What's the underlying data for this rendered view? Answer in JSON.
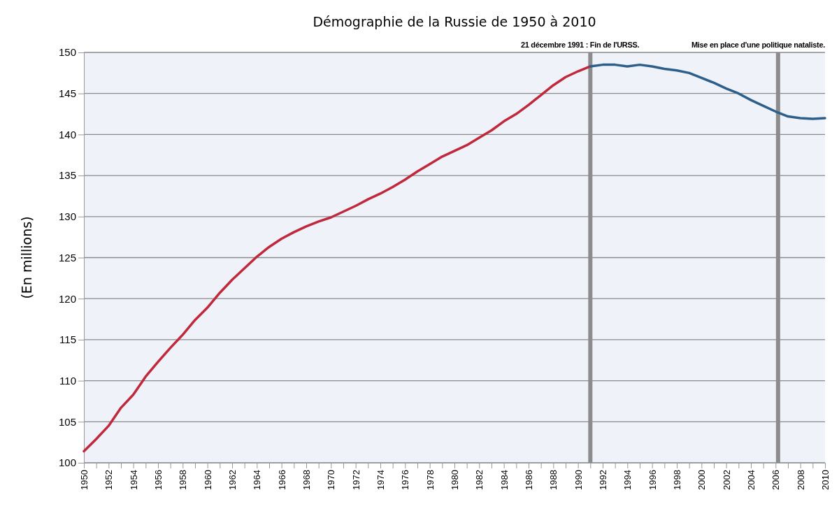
{
  "chart_data": {
    "type": "line",
    "title": "Démographie de la Russie de 1950 à 2010",
    "ylabel": "(En millions)",
    "xlim": [
      1950,
      2010
    ],
    "ylim": [
      100,
      150
    ],
    "xticks": [
      1950,
      {
        "value": 1951,
        "label": null
      },
      1952,
      {
        "value": 1953,
        "label": null
      },
      1954,
      {
        "value": 1955,
        "label": null
      },
      1956,
      {
        "value": 1957,
        "label": null
      },
      1958,
      {
        "value": 1959,
        "label": null
      },
      1960,
      {
        "value": 1961,
        "label": null
      },
      1962,
      {
        "value": 1963,
        "label": null
      },
      1964,
      {
        "value": 1965,
        "label": null
      },
      1966,
      {
        "value": 1967,
        "label": null
      },
      1968,
      {
        "value": 1969,
        "label": null
      },
      1970,
      {
        "value": 1971,
        "label": null
      },
      1972,
      {
        "value": 1973,
        "label": null
      },
      1974,
      {
        "value": 1975,
        "label": null
      },
      1976,
      {
        "value": 1977,
        "label": null
      },
      1978,
      {
        "value": 1979,
        "label": null
      },
      1980,
      {
        "value": 1981,
        "label": null
      },
      1982,
      {
        "value": 1983,
        "label": null
      },
      1984,
      {
        "value": 1985,
        "label": null
      },
      1986,
      {
        "value": 1987,
        "label": null
      },
      1988,
      {
        "value": 1989,
        "label": null
      },
      1990,
      {
        "value": 1991,
        "label": null
      },
      1992,
      {
        "value": 1993,
        "label": null
      },
      1994,
      {
        "value": 1995,
        "label": null
      },
      1996,
      {
        "value": 1997,
        "label": null
      },
      1998,
      {
        "value": 1999,
        "label": null
      },
      2000,
      {
        "value": 2001,
        "label": null
      },
      2002,
      {
        "value": 2003,
        "label": null
      },
      2004,
      {
        "value": 2005,
        "label": null
      },
      2006,
      {
        "value": 2007,
        "label": null
      },
      2008,
      {
        "value": 2009,
        "label": null
      },
      2010
    ],
    "yticks": [
      100,
      105,
      110,
      115,
      120,
      125,
      130,
      135,
      140,
      145,
      150
    ],
    "grid": "y",
    "series": [
      {
        "color": "#c0283c",
        "x": [
          1950,
          1951,
          1952,
          1953,
          1954,
          1955,
          1956,
          1957,
          1958,
          1959,
          1960,
          1961,
          1962,
          1963,
          1964,
          1965,
          1966,
          1967,
          1968,
          1969,
          1970,
          1971,
          1972,
          1973,
          1974,
          1975,
          1976,
          1977,
          1978,
          1979,
          1980,
          1981,
          1982,
          1983,
          1984,
          1985,
          1986,
          1987,
          1988,
          1989,
          1990,
          1991
        ],
        "values": [
          101.4,
          102.9,
          104.5,
          106.7,
          108.3,
          110.5,
          112.3,
          114.0,
          115.6,
          117.4,
          118.9,
          120.7,
          122.3,
          123.7,
          125.1,
          126.3,
          127.3,
          128.1,
          128.8,
          129.4,
          129.9,
          130.6,
          131.3,
          132.1,
          132.8,
          133.6,
          134.5,
          135.5,
          136.4,
          137.3,
          138.0,
          138.7,
          139.6,
          140.5,
          141.6,
          142.5,
          143.6,
          144.8,
          146.0,
          147.0,
          147.7,
          148.3
        ]
      },
      {
        "color": "#2e5f8a",
        "x": [
          1991,
          1992,
          1993,
          1994,
          1995,
          1996,
          1997,
          1998,
          1999,
          2000,
          2001,
          2002,
          2003,
          2004,
          2005,
          2006,
          2007,
          2008,
          2009,
          2010
        ],
        "values": [
          148.3,
          148.5,
          148.5,
          148.3,
          148.5,
          148.3,
          148.0,
          147.8,
          147.5,
          146.9,
          146.3,
          145.6,
          145.0,
          144.2,
          143.5,
          142.8,
          142.2,
          142.0,
          141.9,
          142.0
        ]
      }
    ],
    "ref_lines": [
      {
        "axis": "x",
        "value": 1991,
        "label": "21 décembre 1991 : Fin de l'URSS.",
        "color": "#8c8c8c"
      },
      {
        "axis": "x",
        "value": 2006.2,
        "label": "Mise en place d'une politique nataliste.",
        "color": "#8c8c8c"
      }
    ]
  }
}
